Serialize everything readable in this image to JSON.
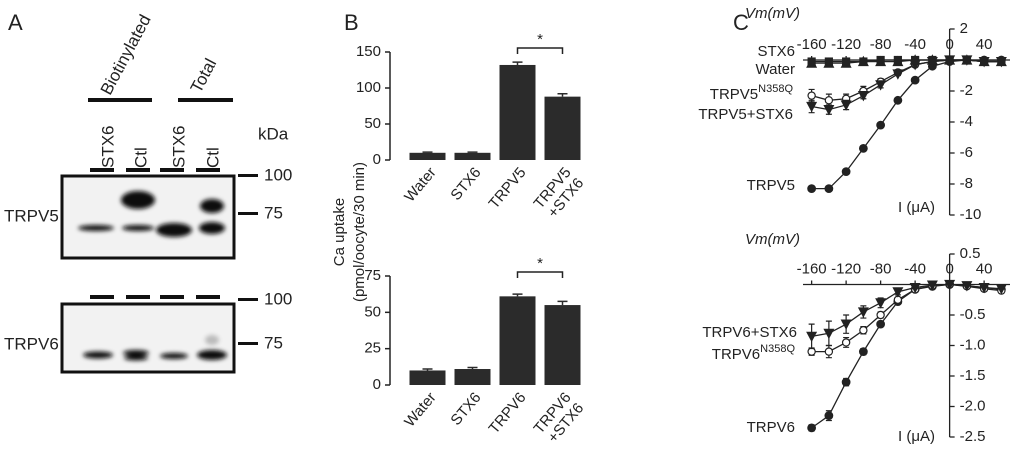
{
  "panel_a": {
    "label": "A",
    "groups": [
      "Biotinylated",
      "Total"
    ],
    "lanes": [
      "STX6",
      "Ctl",
      "STX6",
      "Ctl"
    ],
    "unit": "kDa",
    "blots": [
      {
        "label": "TRPV5",
        "markers": [
          "100",
          "75"
        ]
      },
      {
        "label": "TRPV6",
        "markers": [
          "100",
          "75"
        ]
      }
    ]
  },
  "panel_labels": {
    "b": "B",
    "c": "C"
  },
  "chart_data": [
    {
      "type": "bar",
      "ylabel": [
        "Ca uptake",
        "(pmol/oocyte/30 min)"
      ],
      "categories": [
        "Water",
        "STX6",
        "TRPV5",
        "TRPV5\n+STX6"
      ],
      "values": [
        10,
        10,
        132,
        88
      ],
      "errors": [
        1,
        1,
        4,
        4
      ],
      "color": "#2b2b2b",
      "ylim": [
        0,
        150
      ],
      "yticks": [
        0,
        50,
        100,
        150
      ],
      "annotations": [
        {
          "text": "*",
          "from": 2,
          "to": 3
        }
      ]
    },
    {
      "type": "bar",
      "categories": [
        "Water",
        "STX6",
        "TRPV6",
        "TRPV6\n+STX6"
      ],
      "values": [
        10,
        11,
        61,
        55
      ],
      "errors": [
        1,
        1,
        1.5,
        2.5
      ],
      "color": "#2b2b2b",
      "ylim": [
        0,
        75
      ],
      "yticks": [
        0,
        25,
        50,
        75
      ],
      "annotations": [
        {
          "text": "*",
          "from": 2,
          "to": 3
        }
      ]
    },
    {
      "type": "line",
      "xlabel": "Vm(mV)",
      "ylabel": "I (μA)",
      "x": [
        -160,
        -140,
        -120,
        -100,
        -80,
        -60,
        -40,
        -20,
        0,
        20,
        40,
        60
      ],
      "xlim": [
        -170,
        70
      ],
      "xticks": [
        -160,
        -120,
        -80,
        -40,
        0,
        40
      ],
      "ylim": [
        -10,
        2
      ],
      "yticks": [
        2,
        -2,
        -4,
        -6,
        -8,
        -10
      ],
      "series": [
        {
          "name": "TRPV5",
          "marker": "circle",
          "color": "#222222",
          "values": [
            -8.3,
            -8.3,
            -7.2,
            -5.7,
            -4.2,
            -2.6,
            -1.3,
            -0.4,
            -0.1,
            0,
            0,
            0
          ]
        },
        {
          "name": "TRPV5N358Q",
          "marker": "open-circle",
          "color": "#222222",
          "values": [
            -2.3,
            -2.6,
            -2.5,
            -2.0,
            -1.4,
            -0.8,
            -0.3,
            -0.1,
            0,
            0,
            -0.1,
            -0.1
          ],
          "errors": [
            0.4,
            0.4,
            0.3,
            0.3,
            0.2,
            0.1,
            0.1,
            0,
            0,
            0,
            0,
            0
          ]
        },
        {
          "name": "TRPV5+STX6",
          "marker": "triangle-down",
          "color": "#222222",
          "values": [
            -3.0,
            -3.2,
            -2.9,
            -2.3,
            -1.6,
            -0.9,
            -0.3,
            -0.1,
            0,
            0,
            -0.1,
            -0.1
          ],
          "errors": [
            0.4,
            0.3,
            0.3,
            0.2,
            0.2,
            0.1,
            0.1,
            0,
            0,
            0,
            0,
            0
          ]
        },
        {
          "name": "STX6",
          "marker": "triangle-up",
          "color": "#222222",
          "values": [
            -0.2,
            -0.2,
            -0.2,
            -0.1,
            -0.1,
            -0.1,
            0,
            0,
            0,
            0,
            -0.1,
            -0.1
          ]
        },
        {
          "name": "Water",
          "marker": "square",
          "color": "#222222",
          "values": [
            -0.1,
            -0.1,
            -0.1,
            -0.1,
            0,
            0,
            0,
            0,
            0,
            0,
            -0.1,
            -0.1
          ]
        }
      ]
    },
    {
      "type": "line",
      "xlabel": "Vm(mV)",
      "ylabel": "I (μA)",
      "x": [
        -160,
        -140,
        -120,
        -100,
        -80,
        -60,
        -40,
        -20,
        0,
        20,
        40,
        60
      ],
      "xlim": [
        -170,
        70
      ],
      "xticks": [
        -160,
        -120,
        -80,
        -40,
        0,
        40
      ],
      "ylim": [
        -2.5,
        0.5
      ],
      "yticks": [
        0.5,
        -0.5,
        {
          "value": -1,
          "label": "-1.0"
        },
        -1.5,
        {
          "value": -2,
          "label": "-2.0"
        },
        -2.5
      ],
      "series": [
        {
          "name": "TRPV6",
          "marker": "circle",
          "color": "#222222",
          "values": [
            -2.35,
            -2.15,
            -1.6,
            -1.1,
            -0.65,
            -0.28,
            -0.08,
            -0.03,
            0,
            -0.02,
            -0.05,
            -0.08
          ],
          "errors": [
            0.05,
            0.08,
            0.06,
            0.05,
            0.04,
            0.03,
            0.02,
            0,
            0,
            0,
            0,
            0
          ]
        },
        {
          "name": "TRPV6N358Q",
          "marker": "open-circle",
          "color": "#222222",
          "values": [
            -1.1,
            -1.1,
            -0.95,
            -0.75,
            -0.5,
            -0.25,
            -0.08,
            -0.02,
            0,
            -0.03,
            -0.07,
            -0.1
          ],
          "errors": [
            0.06,
            0.1,
            0.08,
            0.06,
            0.05,
            0.03,
            0.02,
            0,
            0,
            0,
            0,
            0
          ]
        },
        {
          "name": "TRPV6+STX6",
          "marker": "triangle-down",
          "color": "#222222",
          "values": [
            -0.85,
            -0.8,
            -0.65,
            -0.45,
            -0.3,
            -0.12,
            -0.05,
            -0.01,
            0,
            -0.02,
            -0.05,
            -0.07
          ],
          "errors": [
            0.2,
            0.2,
            0.15,
            0.1,
            0.08,
            0.05,
            0.02,
            0,
            0,
            0,
            0,
            0
          ]
        }
      ]
    }
  ]
}
